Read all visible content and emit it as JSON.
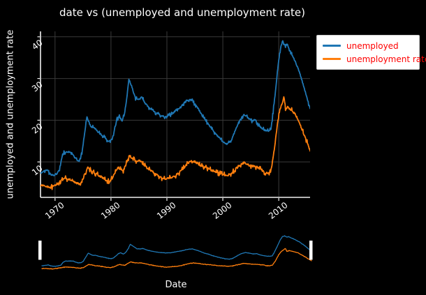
{
  "figure": {
    "title": "date vs (unemployed and unemployment rate)",
    "background": "#000000",
    "text_color": "#ffffff"
  },
  "main_axes": {
    "ylabel": "unemployed and unemployment rate",
    "xtick_labels": [
      "1970",
      "1980",
      "1990",
      "2000",
      "2010"
    ],
    "ytick_labels": [
      "10",
      "20",
      "30",
      "40"
    ],
    "grid_color": "#3a3a3a",
    "spine_color": "#f0f0f0"
  },
  "range_axes": {
    "xlabel": "Date",
    "handle_color": "#ffffff"
  },
  "legend": {
    "background": "#ffffff",
    "label_color": "#ff0000",
    "items": [
      {
        "label": "unemployed",
        "color": "#1f77b4"
      },
      {
        "label": "unemployment rate",
        "color": "#ff7f0e"
      }
    ]
  },
  "chart_data": {
    "type": "line",
    "title": "date vs (unemployed and unemployment rate)",
    "xlabel": "Date",
    "ylabel": "unemployed and unemployment rate",
    "x_range": [
      1967.4,
      2015.6
    ],
    "ylim": [
      1.5,
      41.3
    ],
    "xticks": [
      1970,
      1980,
      1990,
      2000,
      2010
    ],
    "yticks": [
      10,
      20,
      30,
      40
    ],
    "grid": true,
    "legend_position": "top-right",
    "range_selector": {
      "visible": true,
      "selected_range": [
        1967.4,
        2015.6
      ]
    },
    "series": [
      {
        "name": "unemployed",
        "color": "#1f77b4",
        "x": [
          1967.4,
          1968.0,
          1968.5,
          1969.2,
          1969.8,
          1970.3,
          1970.8,
          1971.2,
          1971.6,
          1972.3,
          1973.0,
          1973.5,
          1974.0,
          1974.4,
          1974.8,
          1975.2,
          1975.7,
          1976.1,
          1976.5,
          1977.0,
          1977.4,
          1978.0,
          1978.6,
          1979.2,
          1979.7,
          1980.2,
          1980.7,
          1981.1,
          1981.5,
          1982.0,
          1982.4,
          1982.8,
          1983.2,
          1983.6,
          1984.0,
          1984.4,
          1985.0,
          1985.5,
          1986.0,
          1986.8,
          1987.5,
          1988.2,
          1989.0,
          1989.6,
          1990.3,
          1991.0,
          1991.7,
          1992.4,
          1993.0,
          1993.7,
          1994.3,
          1994.8,
          1995.5,
          1996.2,
          1997.0,
          1998.0,
          1999.0,
          2000.0,
          2000.8,
          2001.5,
          2002.2,
          2003.0,
          2003.8,
          2004.5,
          2005.2,
          2005.8,
          2006.4,
          2007.0,
          2007.6,
          2008.2,
          2008.6,
          2009.0,
          2009.5,
          2010.0,
          2010.4,
          2010.8,
          2011.2,
          2011.5,
          2011.9,
          2012.3,
          2012.7,
          2013.1,
          2013.5,
          2014.0,
          2014.5,
          2015.0,
          2015.6
        ],
        "y": [
          7.3,
          7.8,
          8.1,
          7.0,
          6.8,
          7.2,
          8.0,
          11.0,
          12.2,
          12.4,
          12.2,
          11.0,
          10.3,
          10.6,
          12.0,
          16.0,
          20.7,
          19.4,
          18.3,
          18.4,
          17.6,
          16.8,
          16.2,
          15.3,
          14.9,
          15.5,
          18.0,
          20.3,
          20.9,
          19.8,
          21.5,
          25.0,
          29.9,
          28.5,
          26.8,
          25.2,
          25.0,
          25.6,
          24.3,
          23.0,
          22.2,
          21.6,
          21.1,
          20.8,
          21.1,
          21.6,
          22.5,
          23.0,
          24.0,
          24.9,
          25.1,
          24.2,
          23.0,
          21.3,
          19.8,
          17.9,
          16.3,
          14.9,
          14.3,
          15.0,
          17.5,
          20.0,
          21.3,
          20.6,
          19.8,
          20.1,
          18.8,
          18.0,
          17.6,
          17.4,
          17.8,
          22.0,
          28.0,
          34.5,
          38.0,
          38.8,
          37.6,
          38.2,
          37.0,
          35.8,
          34.9,
          33.5,
          32.3,
          30.2,
          28.0,
          25.5,
          22.8
        ]
      },
      {
        "name": "unemployment rate",
        "color": "#ff7f0e",
        "x": [
          1967.4,
          1968.0,
          1968.6,
          1969.3,
          1970.0,
          1970.6,
          1971.2,
          1971.8,
          1972.4,
          1973.0,
          1973.6,
          1974.2,
          1974.8,
          1975.3,
          1975.8,
          1976.3,
          1977.0,
          1977.6,
          1978.3,
          1979.0,
          1979.7,
          1980.3,
          1980.9,
          1981.3,
          1981.7,
          1982.2,
          1982.7,
          1983.3,
          1983.8,
          1984.5,
          1985.1,
          1985.8,
          1986.5,
          1987.3,
          1988.1,
          1989.0,
          1989.8,
          1990.6,
          1991.4,
          1992.2,
          1993.0,
          1993.8,
          1994.5,
          1995.2,
          1996.0,
          1997.0,
          1998.0,
          1999.0,
          2000.0,
          2000.8,
          2001.6,
          2002.4,
          2003.2,
          2003.8,
          2004.5,
          2005.2,
          2006.0,
          2006.8,
          2007.6,
          2008.2,
          2008.7,
          2009.2,
          2009.7,
          2010.2,
          2010.7,
          2010.9,
          2011.2,
          2011.5,
          2012.0,
          2012.4,
          2012.9,
          2013.4,
          2013.9,
          2014.4,
          2014.9,
          2015.3,
          2015.6
        ],
        "y": [
          4.2,
          4.5,
          4.1,
          3.9,
          4.4,
          5.0,
          5.6,
          6.1,
          5.8,
          5.7,
          5.0,
          4.7,
          5.3,
          7.0,
          8.8,
          8.1,
          7.4,
          7.0,
          6.4,
          5.7,
          5.3,
          6.2,
          7.8,
          8.7,
          8.2,
          7.9,
          9.5,
          11.5,
          10.8,
          10.2,
          10.5,
          9.4,
          8.5,
          7.8,
          6.9,
          6.2,
          5.9,
          6.2,
          6.6,
          7.4,
          8.6,
          9.8,
          10.3,
          9.9,
          9.2,
          8.6,
          8.0,
          7.4,
          7.0,
          6.8,
          7.3,
          8.5,
          9.4,
          9.8,
          9.3,
          9.0,
          8.8,
          8.2,
          7.4,
          7.2,
          8.5,
          13.0,
          18.5,
          22.5,
          24.5,
          25.8,
          22.5,
          23.2,
          22.8,
          22.3,
          21.5,
          20.3,
          18.6,
          17.0,
          15.3,
          13.8,
          12.6
        ]
      }
    ]
  }
}
